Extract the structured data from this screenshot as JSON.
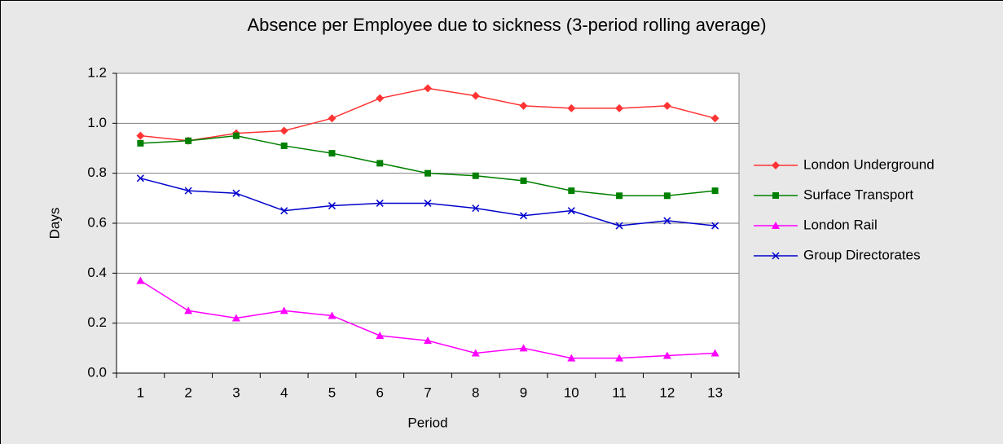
{
  "chart_data": {
    "type": "line",
    "title": "Absence per Employee due to sickness (3-period rolling average)",
    "x_label": "Period",
    "y_label": "Days",
    "categories": [
      1,
      2,
      3,
      4,
      5,
      6,
      7,
      8,
      9,
      10,
      11,
      12,
      13
    ],
    "ylim": [
      0,
      1.2
    ],
    "yticks": [
      {
        "value": 0,
        "label": "0.0"
      },
      0.2,
      0.4,
      0.6,
      0.8,
      {
        "value": 1,
        "label": "1.0"
      },
      1.2
    ],
    "grid": true,
    "legend": "right",
    "series": [
      {
        "name": "London Underground",
        "color": "#ff3333",
        "marker": "diamond",
        "values": [
          0.95,
          0.93,
          0.96,
          0.97,
          1.02,
          1.1,
          1.14,
          1.11,
          1.07,
          1.06,
          1.06,
          1.07,
          1.02
        ]
      },
      {
        "name": "Surface Transport",
        "color": "#008000",
        "marker": "square",
        "values": [
          0.92,
          0.93,
          0.95,
          0.91,
          0.88,
          0.84,
          0.8,
          0.79,
          0.77,
          0.73,
          0.71,
          0.71,
          0.73
        ]
      },
      {
        "name": "London Rail",
        "color": "#ff00ff",
        "marker": "triangle",
        "values": [
          0.37,
          0.25,
          0.22,
          0.25,
          0.23,
          0.15,
          0.13,
          0.08,
          0.1,
          0.06,
          0.06,
          0.07,
          0.08
        ]
      },
      {
        "name": "Group Directorates",
        "color": "#0000cc",
        "marker": "x",
        "values": [
          0.78,
          0.73,
          0.72,
          0.65,
          0.67,
          0.68,
          0.68,
          0.66,
          0.63,
          0.65,
          0.59,
          0.61,
          0.59
        ]
      }
    ]
  }
}
